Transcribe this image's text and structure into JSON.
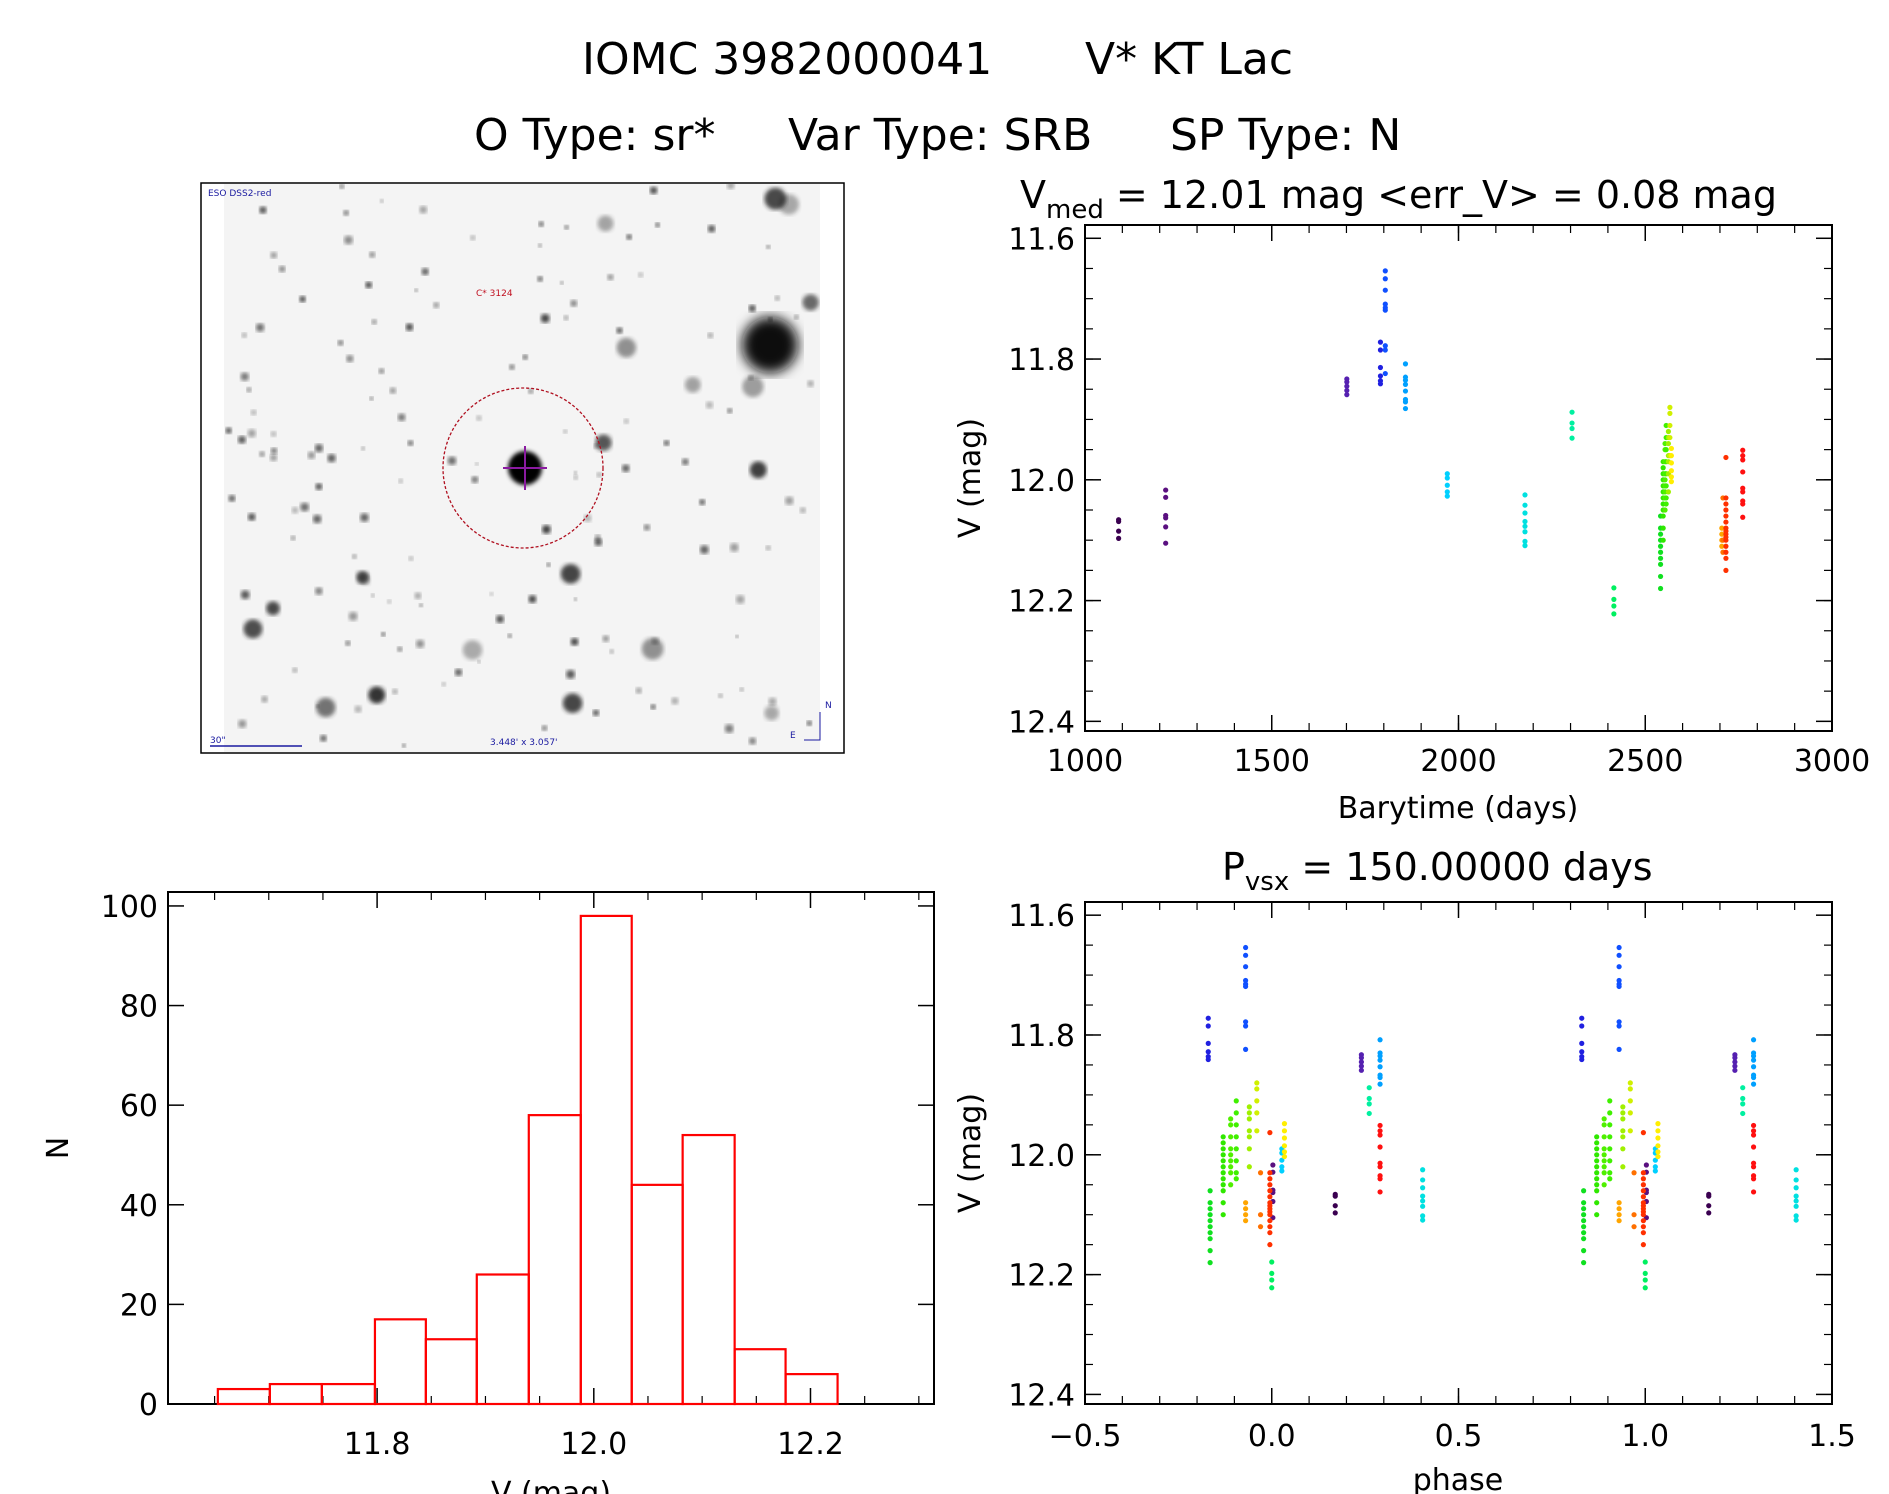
{
  "header": {
    "title_id": "IOMC 3982000041",
    "title_name": "V* KT Lac",
    "otype": "O Type: sr*",
    "vartype": "Var Type: SRB",
    "sptype": "SP Type: N"
  },
  "finder_image": {
    "survey": "ESO DSS2-red",
    "object_label": "C* 3124",
    "scale_bar": "30\"",
    "field_size": "3.448' x 3.057'",
    "north": "N",
    "east": "E"
  },
  "chart_data": [
    {
      "type": "scatter",
      "id": "lightcurve",
      "title_main": "V",
      "title_sub": "med",
      "title_rest": " = 12.01 mag <err_V> = 0.08 mag",
      "xlabel": "Barytime (days)",
      "ylabel": "V (mag)",
      "xlim": [
        1000,
        3000
      ],
      "ylim": [
        12.416,
        11.578
      ],
      "xticks": [
        "1000",
        "1500",
        "2000",
        "2500",
        "3000"
      ],
      "yticks": [
        "11.6",
        "11.8",
        "12.0",
        "12.2",
        "12.4"
      ],
      "clusters": [
        {
          "t": 1090,
          "phase": 0.17,
          "color": "#3a0050",
          "v": [
            12.066,
            12.069,
            12.085,
            12.097
          ]
        },
        {
          "t": 1216,
          "phase": 0.003,
          "color": "#5a1080",
          "v": [
            12.017,
            12.029,
            12.059,
            12.063,
            12.078,
            12.105
          ]
        },
        {
          "t": 1701,
          "phase": 0.24,
          "color": "#5520b0",
          "v": [
            11.833,
            11.838,
            11.845,
            11.852,
            11.859
          ]
        },
        {
          "t": 1791,
          "phase": -0.17,
          "color": "#2020e0",
          "v": [
            11.772,
            11.785,
            11.814,
            11.828,
            11.836,
            11.841
          ]
        },
        {
          "t": 1804,
          "phase": -0.07,
          "color": "#1050ff",
          "v": [
            11.654,
            11.667,
            11.686,
            11.709,
            11.715,
            11.719,
            11.778,
            11.785,
            11.824
          ]
        },
        {
          "t": 1858,
          "phase": 0.29,
          "color": "#00a0ff",
          "v": [
            11.808,
            11.83,
            11.835,
            11.842,
            11.853,
            11.867,
            11.871,
            11.882
          ]
        },
        {
          "t": 1970,
          "phase": 0.027,
          "color": "#00d0ff",
          "v": [
            11.99,
            11.997,
            12.009,
            12.02,
            12.027
          ]
        },
        {
          "t": 2178,
          "phase": 0.404,
          "color": "#00e0e0",
          "v": [
            12.025,
            12.042,
            12.055,
            12.069,
            12.077,
            12.086,
            12.102,
            12.109
          ]
        },
        {
          "t": 2304,
          "phase": 0.261,
          "color": "#00f0a0",
          "v": [
            11.888,
            11.906,
            11.915,
            11.931
          ]
        },
        {
          "t": 2416,
          "phase": 0.0,
          "color": "#00f060",
          "v": [
            12.179,
            12.198,
            12.209,
            12.222
          ]
        },
        {
          "t": 2541,
          "phase": -0.165,
          "color": "#10e020",
          "v": [
            12.06,
            12.08,
            12.09,
            12.1,
            12.11,
            12.12,
            12.13,
            12.14,
            12.16,
            12.18
          ]
        },
        {
          "t": 2548,
          "phase": -0.13,
          "color": "#30e800",
          "v": [
            11.97,
            11.98,
            11.99,
            12.0,
            12.01,
            12.02,
            12.03,
            12.04,
            12.05,
            12.06,
            12.08,
            12.1
          ]
        },
        {
          "t": 2553,
          "phase": -0.11,
          "color": "#50f000",
          "v": [
            11.94,
            11.95,
            11.97,
            11.99,
            12.0,
            12.01,
            12.02,
            12.03,
            12.05
          ]
        },
        {
          "t": 2556,
          "phase": -0.095,
          "color": "#40f000",
          "v": [
            11.91,
            11.93,
            11.95,
            11.97,
            11.99,
            12.01,
            12.03,
            12.04
          ]
        },
        {
          "t": 2562,
          "phase": -0.06,
          "color": "#a0f000",
          "v": [
            11.92,
            11.93,
            11.94,
            11.96,
            11.97,
            11.99,
            12.02
          ]
        },
        {
          "t": 2566,
          "phase": -0.04,
          "color": "#d0f000",
          "v": [
            11.88,
            11.89,
            11.91,
            11.93,
            11.96
          ]
        },
        {
          "t": 2570,
          "phase": 0.034,
          "color": "#ffee00",
          "v": [
            11.948,
            11.96,
            11.972,
            11.985,
            11.995,
            12.003
          ]
        },
        {
          "t": 2705,
          "phase": -0.07,
          "color": "#ffa500",
          "v": [
            12.08,
            12.09,
            12.1,
            12.11
          ]
        },
        {
          "t": 2708,
          "phase": -0.03,
          "color": "#ff7000",
          "v": [
            12.03,
            12.1,
            12.12
          ]
        },
        {
          "t": 2716,
          "phase": -0.005,
          "color": "#ff3000",
          "v": [
            11.963,
            12.03,
            12.04,
            12.05,
            12.06,
            12.07,
            12.08,
            12.085,
            12.09,
            12.095,
            12.1,
            12.11,
            12.12,
            12.13,
            12.15
          ]
        },
        {
          "t": 2761,
          "phase": 0.29,
          "color": "#ff1010",
          "v": [
            11.951,
            11.96,
            11.967,
            11.987,
            12.014,
            12.02,
            12.035,
            12.04,
            12.062
          ]
        }
      ]
    },
    {
      "type": "scatter",
      "id": "phased",
      "title_main": "P",
      "title_sub": "vsx",
      "title_rest": " = 150.00000 days",
      "xlabel": "phase",
      "ylabel": "V (mag)",
      "xlim": [
        -0.5,
        1.5
      ],
      "ylim": [
        12.416,
        11.578
      ],
      "xticks": [
        "−0.5",
        "0.0",
        "0.5",
        "1.0",
        "1.5"
      ],
      "yticks": [
        "11.6",
        "11.8",
        "12.0",
        "12.2",
        "12.4"
      ],
      "note": "same points as lightcurve plotted at phase and phase+1"
    },
    {
      "type": "bar",
      "id": "histogram",
      "xlabel": "V (mag)",
      "ylabel": "N",
      "xlim": [
        11.607,
        12.314
      ],
      "ylim": [
        0,
        102.8
      ],
      "xticks": [
        "11.8",
        "12.0",
        "12.2"
      ],
      "yticks": [
        "0",
        "20",
        "40",
        "60",
        "80",
        "100"
      ],
      "bin_edges": [
        11.653,
        11.701,
        11.749,
        11.798,
        11.845,
        11.892,
        11.94,
        11.988,
        12.035,
        12.082,
        12.13,
        12.177,
        12.225
      ],
      "counts": [
        3,
        4,
        4,
        17,
        13,
        26,
        58,
        98,
        44,
        54,
        11,
        6
      ],
      "color": "#ff0000"
    }
  ]
}
